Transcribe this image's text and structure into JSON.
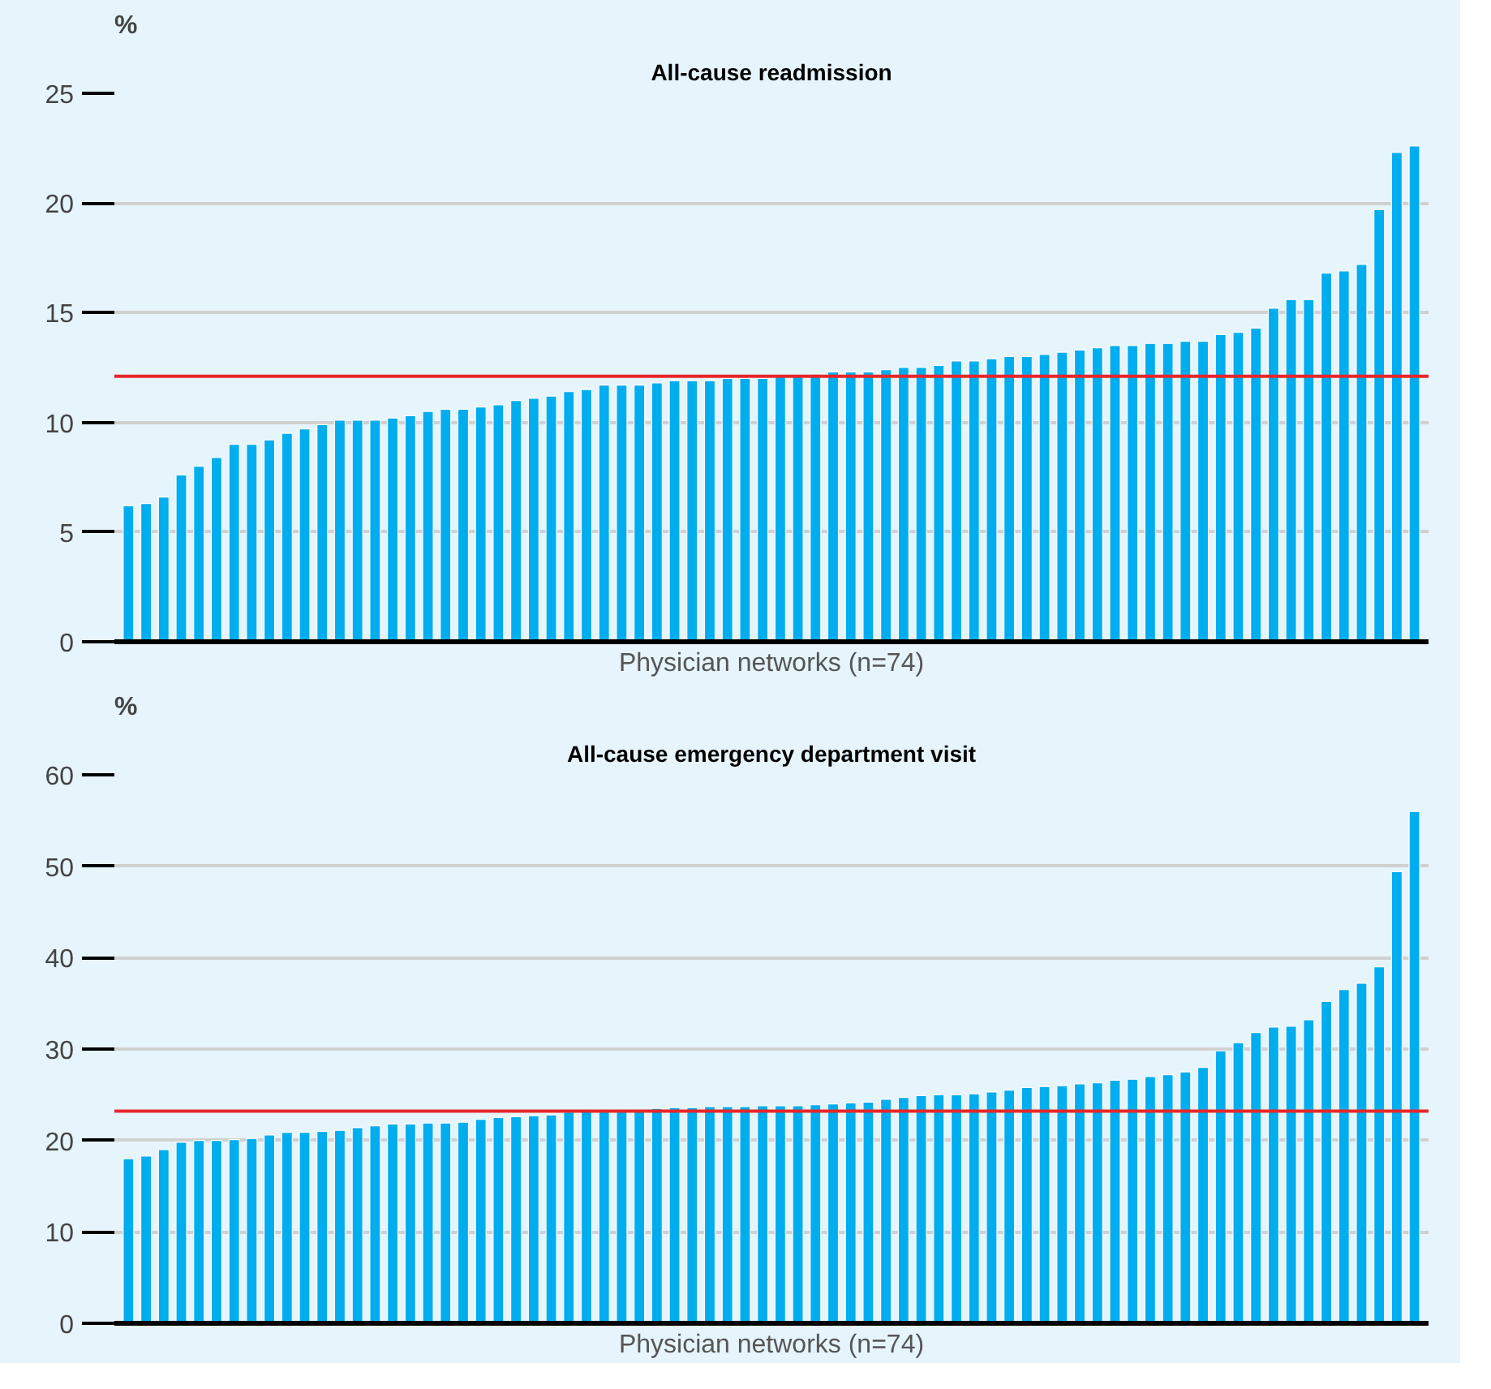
{
  "chart_data": [
    {
      "type": "bar",
      "title": "All-cause readmission",
      "ylabel": "%",
      "xlabel": "Physician networks (n=74)",
      "categories": [
        null,
        null,
        null,
        null,
        null,
        null,
        null,
        null,
        null,
        null,
        null,
        null,
        null,
        null,
        null,
        null,
        null,
        null,
        null,
        null,
        null,
        null,
        null,
        null,
        null,
        null,
        null,
        null,
        null,
        null,
        null,
        null,
        null,
        null,
        null,
        null,
        null,
        null,
        null,
        null,
        null,
        null,
        null,
        null,
        null,
        null,
        null,
        null,
        null,
        null,
        null,
        null,
        null,
        null,
        null,
        null,
        null,
        null,
        null,
        null,
        null,
        null,
        null,
        null,
        null,
        null,
        null,
        null,
        null,
        null,
        null,
        null,
        null,
        null
      ],
      "series": [
        {
          "color": "#00adef",
          "values": [
            6.2,
            6.3,
            6.6,
            7.6,
            8.0,
            8.4,
            9.0,
            9.0,
            9.2,
            9.5,
            9.7,
            9.9,
            10.1,
            10.1,
            10.1,
            10.2,
            10.3,
            10.5,
            10.6,
            10.6,
            10.7,
            10.8,
            11.0,
            11.1,
            11.2,
            11.4,
            11.5,
            11.7,
            11.7,
            11.7,
            11.8,
            11.9,
            11.9,
            11.9,
            12.0,
            12.0,
            12.0,
            12.1,
            12.1,
            12.2,
            12.3,
            12.3,
            12.3,
            12.4,
            12.5,
            12.5,
            12.6,
            12.8,
            12.8,
            12.9,
            13.0,
            13.0,
            13.1,
            13.2,
            13.3,
            13.4,
            13.5,
            13.5,
            13.6,
            13.6,
            13.7,
            13.7,
            14.0,
            14.1,
            14.3,
            15.2,
            15.6,
            15.6,
            16.8,
            16.9,
            17.2,
            19.7,
            22.3,
            22.6
          ]
        }
      ],
      "ylim": [
        0,
        25
      ],
      "yticks": [
        0,
        5,
        10,
        15,
        20,
        25
      ],
      "grid": "y",
      "tick_labels": "y",
      "ref_lines": [
        {
          "axis": "y",
          "value": 12.1,
          "color": "#e8262a"
        }
      ]
    },
    {
      "type": "bar",
      "title": "All-cause emergency department visit",
      "ylabel": "%",
      "xlabel": "Physician networks (n=74)",
      "categories": [
        null,
        null,
        null,
        null,
        null,
        null,
        null,
        null,
        null,
        null,
        null,
        null,
        null,
        null,
        null,
        null,
        null,
        null,
        null,
        null,
        null,
        null,
        null,
        null,
        null,
        null,
        null,
        null,
        null,
        null,
        null,
        null,
        null,
        null,
        null,
        null,
        null,
        null,
        null,
        null,
        null,
        null,
        null,
        null,
        null,
        null,
        null,
        null,
        null,
        null,
        null,
        null,
        null,
        null,
        null,
        null,
        null,
        null,
        null,
        null,
        null,
        null,
        null,
        null,
        null,
        null,
        null,
        null,
        null,
        null,
        null,
        null,
        null,
        null
      ],
      "series": [
        {
          "color": "#00adef",
          "values": [
            18.0,
            18.3,
            19.0,
            19.8,
            20.0,
            20.0,
            20.1,
            20.2,
            20.6,
            20.9,
            20.9,
            21.0,
            21.1,
            21.4,
            21.6,
            21.8,
            21.8,
            21.9,
            21.9,
            22.0,
            22.3,
            22.5,
            22.6,
            22.7,
            22.8,
            23.1,
            23.2,
            23.2,
            23.2,
            23.3,
            23.5,
            23.6,
            23.6,
            23.7,
            23.7,
            23.7,
            23.8,
            23.8,
            23.8,
            23.9,
            24.0,
            24.1,
            24.2,
            24.5,
            24.7,
            24.9,
            25.0,
            25.0,
            25.1,
            25.3,
            25.5,
            25.8,
            25.9,
            26.0,
            26.2,
            26.3,
            26.6,
            26.7,
            27.0,
            27.2,
            27.5,
            28.0,
            29.8,
            30.7,
            31.8,
            32.4,
            32.5,
            33.2,
            35.2,
            36.5,
            37.2,
            39.0,
            49.4,
            56.0
          ]
        }
      ],
      "ylim": [
        0,
        60
      ],
      "yticks": [
        0,
        10,
        20,
        30,
        40,
        50,
        60
      ],
      "grid": "y",
      "tick_labels": "y",
      "ref_lines": [
        {
          "axis": "y",
          "value": 23.2,
          "color": "#e8262a"
        }
      ]
    }
  ]
}
